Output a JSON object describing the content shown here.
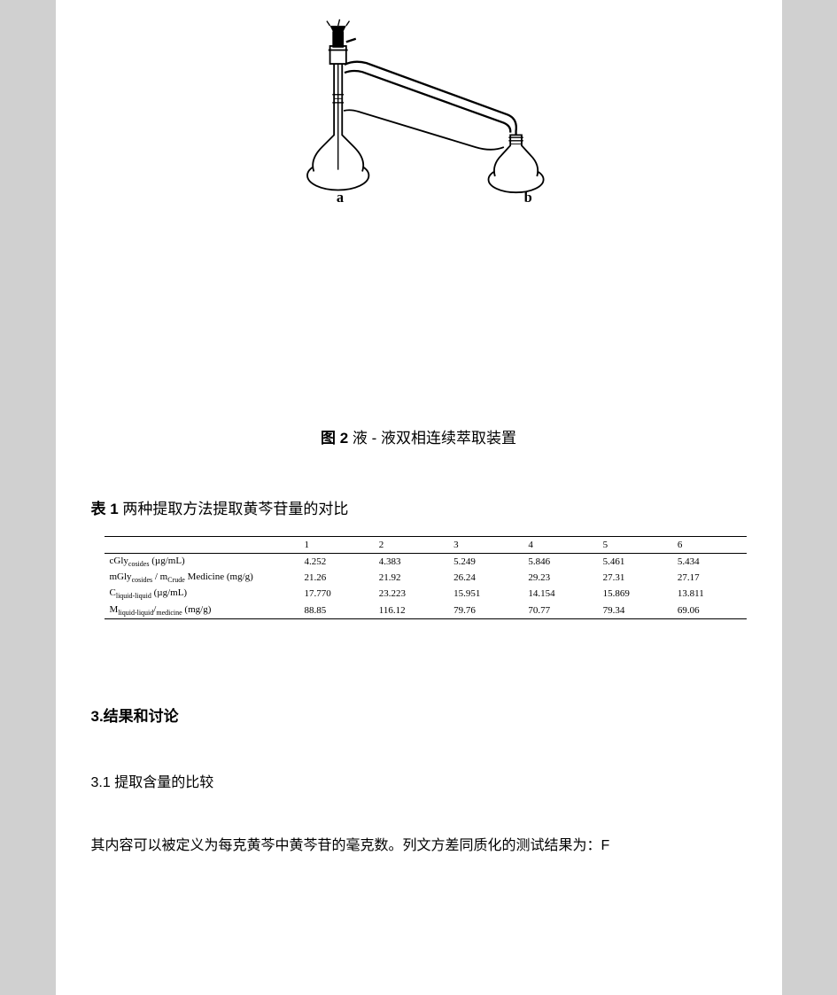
{
  "figure": {
    "label_a": "a",
    "label_b": "b",
    "caption_prefix": "图 2",
    "caption_text": "液 - 液双相连续萃取装置"
  },
  "table": {
    "caption_prefix": "表 1",
    "caption_text": "两种提取方法提取黄芩苷量的对比",
    "headers": [
      "",
      "1",
      "2",
      "3",
      "4",
      "5",
      "6"
    ],
    "rows": [
      {
        "label_html": "cGly<span class='sub'>cosides</span> (µg/mL)",
        "values": [
          "4.252",
          "4.383",
          "5.249",
          "5.846",
          "5.461",
          "5.434"
        ]
      },
      {
        "label_html": "mGly<span class='sub'>cosides</span> / m<span class='sub'>Crude</span> Medicine (mg/g)",
        "values": [
          "21.26",
          "21.92",
          "26.24",
          "29.23",
          "27.31",
          "27.17"
        ]
      },
      {
        "label_html": "C<span class='sub'>liquid-liquid</span> (µg/mL)",
        "values": [
          "17.770",
          "23.223",
          "15.951",
          "14.154",
          "15.869",
          "13.811"
        ]
      },
      {
        "label_html": "M<span class='sub'>liquid-liquid</span>/<span class='sub'>medicine</span> (mg/g)",
        "values": [
          "88.85",
          "116.12",
          "79.76",
          "70.77",
          "79.34",
          "69.06"
        ]
      }
    ]
  },
  "sections": {
    "heading": "3.结果和讨论",
    "subsection": "3.1 提取含量的比较",
    "body": "其内容可以被定义为每克黄芩中黄芩苷的毫克数。列文方差同质化的测试结果为：F"
  },
  "style": {
    "page_bg": "#ffffff",
    "outer_bg": "#d0d0d0",
    "text_color": "#000000",
    "table_border_color": "#000000"
  }
}
